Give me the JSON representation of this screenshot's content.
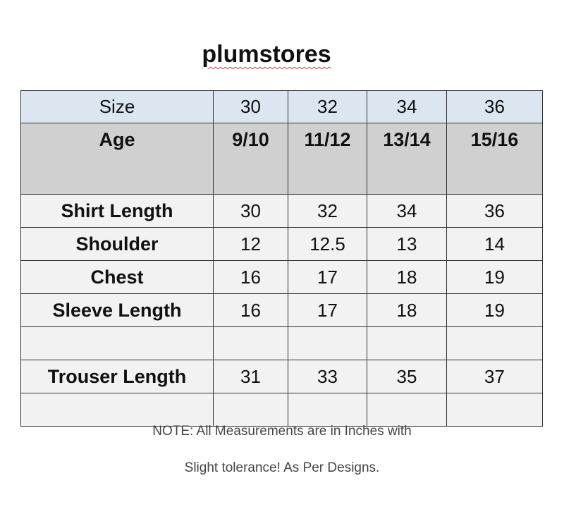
{
  "title": "plumstores",
  "table": {
    "header_label": "Size",
    "sizes": [
      "30",
      "32",
      "34",
      "36"
    ],
    "age_label": "Age",
    "ages": [
      "9/10",
      "11/12",
      "13/14",
      "15/16"
    ],
    "rows": [
      {
        "label": "Shirt Length",
        "values": [
          "30",
          "32",
          "34",
          "36"
        ]
      },
      {
        "label": "Shoulder",
        "values": [
          "12",
          "12.5",
          "13",
          "14"
        ]
      },
      {
        "label": "Chest",
        "values": [
          "16",
          "17",
          "18",
          "19"
        ]
      },
      {
        "label": "Sleeve Length",
        "values": [
          "16",
          "17",
          "18",
          "19"
        ]
      },
      {
        "label": "",
        "values": [
          "",
          "",
          "",
          ""
        ]
      },
      {
        "label": "Trouser Length",
        "values": [
          "31",
          "33",
          "35",
          "37"
        ]
      },
      {
        "label": "",
        "values": [
          "",
          "",
          "",
          ""
        ]
      }
    ]
  },
  "note": {
    "line1": "NOTE:  All Measurements are in Inches with",
    "line2": "Slight tolerance! As Per Designs."
  },
  "colors": {
    "size_row": "#dce6f1",
    "age_row": "#d0d0d0",
    "body_row": "#f2f2f2"
  }
}
